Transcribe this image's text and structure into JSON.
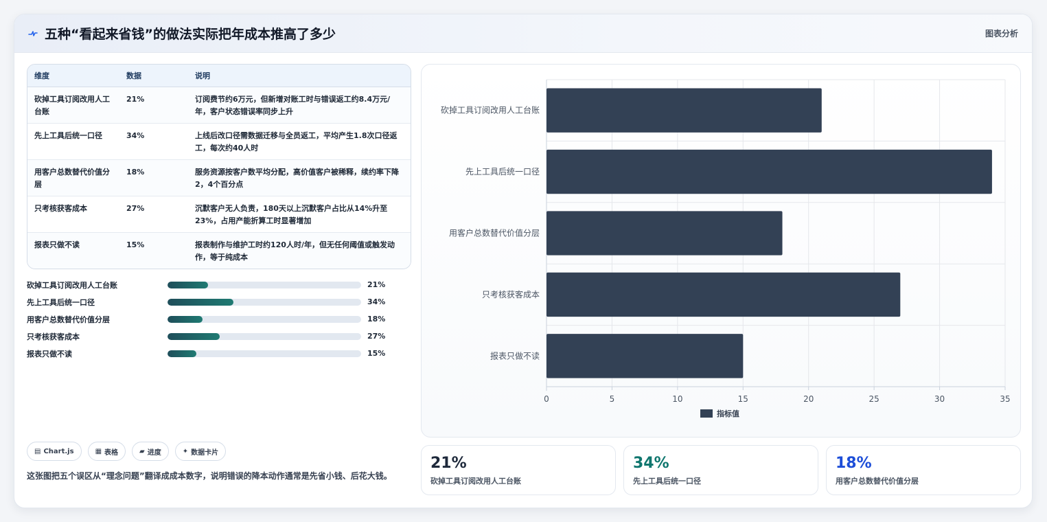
{
  "header": {
    "title": "五种“看起来省钱”的做法实际把年成本推高了多少",
    "link": "图表分析"
  },
  "table": {
    "headers": [
      "维度",
      "数据",
      "说明"
    ],
    "rows": [
      {
        "dim": "砍掉工具订阅改用人工台账",
        "value": "21%",
        "note": "订阅费节约6万元，但新增对账工时与错误返工约8.4万元/年，客户状态错误率同步上升"
      },
      {
        "dim": "先上工具后统一口径",
        "value": "34%",
        "note": "上线后改口径需数据迁移与全员返工，平均产生1.8次口径返工，每次约40人时"
      },
      {
        "dim": "用客户总数替代价值分层",
        "value": "18%",
        "note": "服务资源按客户数平均分配，高价值客户被稀释，续约率下降2，4个百分点"
      },
      {
        "dim": "只考核获客成本",
        "value": "27%",
        "note": "沉默客户无人负责，180天以上沉默客户占比从14%升至23%，占用产能折算工时显著增加"
      },
      {
        "dim": "报表只做不读",
        "value": "15%",
        "note": "报表制作与维护工时约120人时/年，但无任何阈值或触发动作，等于纯成本"
      }
    ]
  },
  "progress": [
    {
      "label": "砍掉工具订阅改用人工台账",
      "value": 21,
      "text": "21%"
    },
    {
      "label": "先上工具后统一口径",
      "value": 34,
      "text": "34%"
    },
    {
      "label": "用客户总数替代价值分层",
      "value": 18,
      "text": "18%"
    },
    {
      "label": "只考核获客成本",
      "value": 27,
      "text": "27%"
    },
    {
      "label": "报表只做不读",
      "value": 15,
      "text": "15%"
    }
  ],
  "tags": [
    {
      "icon": "chart-icon",
      "glyph": "▤",
      "label": "Chart.js"
    },
    {
      "icon": "table-icon",
      "glyph": "▦",
      "label": "表格"
    },
    {
      "icon": "progress-icon",
      "glyph": "▰",
      "label": "进度"
    },
    {
      "icon": "sparkle-icon",
      "glyph": "✦",
      "label": "数据卡片"
    }
  ],
  "description": "这张图把五个误区从“理念问题”翻译成成本数字，说明错误的降本动作通常是先省小钱、后花大钱。",
  "chart_data": {
    "type": "bar",
    "orientation": "horizontal",
    "categories": [
      "砍掉工具订阅改用人工台账",
      "先上工具后统一口径",
      "用客户总数替代价值分层",
      "只考核获客成本",
      "报表只做不读"
    ],
    "series": [
      {
        "name": "指标值",
        "values": [
          21,
          34,
          18,
          27,
          15
        ],
        "color": "#334155"
      }
    ],
    "xlim": [
      0,
      35
    ],
    "xticks": [
      0,
      5,
      10,
      15,
      20,
      25,
      30,
      35
    ],
    "grid": true,
    "legend": "bottom"
  },
  "kpis": [
    {
      "value": "21%",
      "label": "砍掉工具订阅改用人工台账",
      "color": "#1e293b"
    },
    {
      "value": "34%",
      "label": "先上工具后统一口径",
      "color": "#0f766e"
    },
    {
      "value": "18%",
      "label": "用客户总数替代价值分层",
      "color": "#1d4ed8"
    }
  ],
  "colors": {
    "accent": "#1d4ed8",
    "bar": "#334155",
    "progress": "#1f6f6b"
  }
}
